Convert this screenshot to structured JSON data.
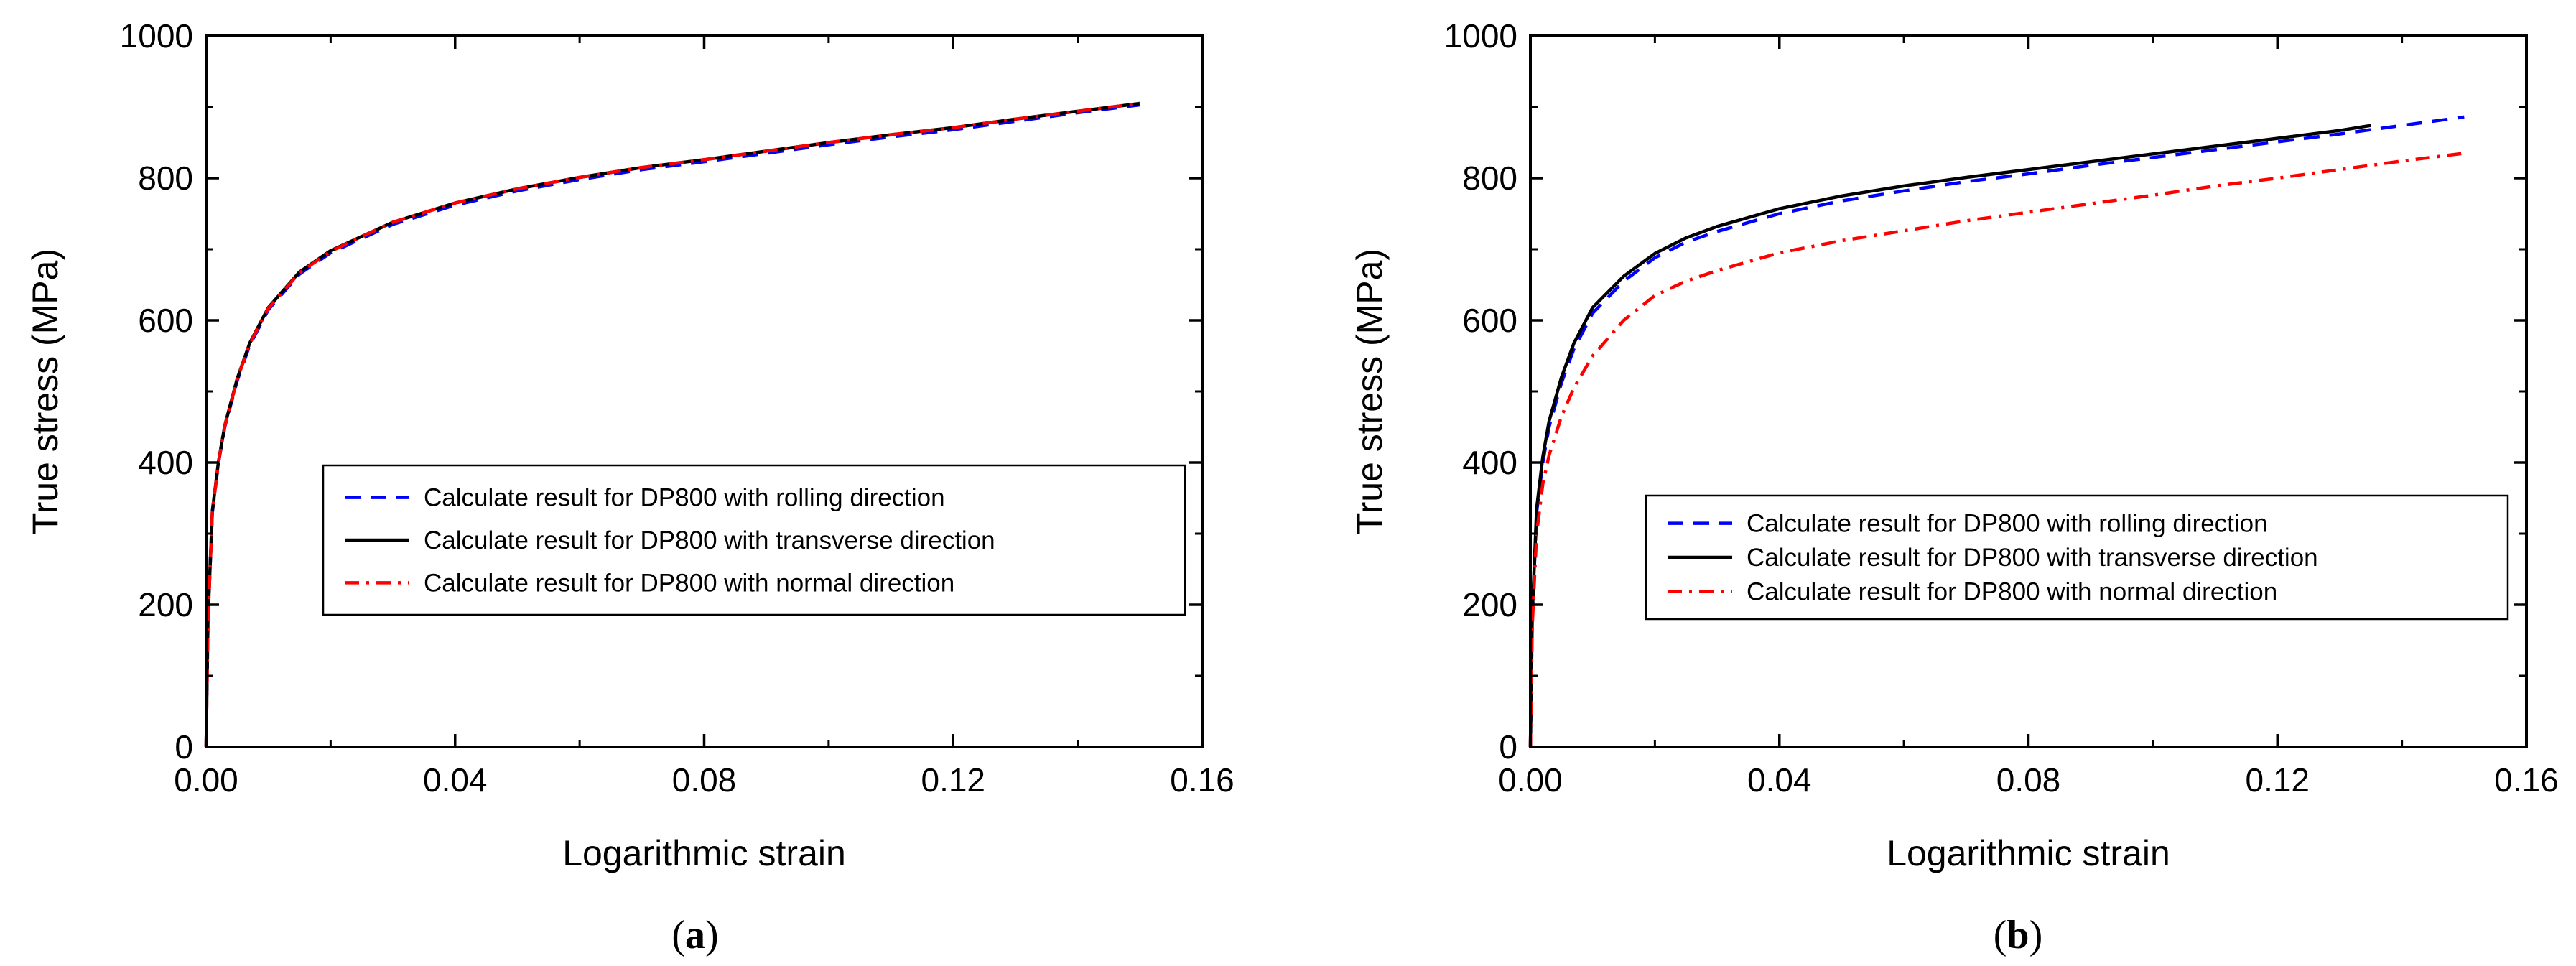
{
  "chart_data": [
    {
      "type": "line",
      "panel": "a",
      "caption": {
        "open": "(",
        "letter": "a",
        "close": ")"
      },
      "xlabel": "Logarithmic strain",
      "ylabel": "True stress (MPa)",
      "xlim": [
        0,
        0.16
      ],
      "ylim": [
        0,
        1000
      ],
      "xticks": [
        0.0,
        0.04,
        0.08,
        0.12,
        0.16
      ],
      "xtick_labels": [
        "0.00",
        "0.04",
        "0.08",
        "0.12",
        "0.16"
      ],
      "yticks": [
        0,
        200,
        400,
        600,
        800,
        1000
      ],
      "ytick_labels": [
        "0",
        "200",
        "400",
        "600",
        "800",
        "1000"
      ],
      "legend_position": "lower-right",
      "series": [
        {
          "name": "Calculate result for DP800 with rolling direction",
          "color": "#0000ff",
          "style": "dash",
          "x": [
            0,
            0.0003,
            0.001,
            0.002,
            0.003,
            0.005,
            0.007,
            0.01,
            0.015,
            0.02,
            0.025,
            0.03,
            0.04,
            0.05,
            0.06,
            0.07,
            0.08,
            0.09,
            0.1,
            0.11,
            0.12,
            0.13,
            0.14,
            0.15
          ],
          "y": [
            0,
            180,
            330,
            400,
            450,
            515,
            565,
            615,
            665,
            695,
            715,
            735,
            762,
            782,
            798,
            812,
            823,
            835,
            847,
            858,
            868,
            880,
            892,
            903
          ]
        },
        {
          "name": "Calculate result for DP800 with transverse direction",
          "color": "#000000",
          "style": "solid",
          "x": [
            0,
            0.0003,
            0.001,
            0.002,
            0.003,
            0.005,
            0.007,
            0.01,
            0.015,
            0.02,
            0.025,
            0.03,
            0.04,
            0.05,
            0.06,
            0.07,
            0.08,
            0.09,
            0.1,
            0.11,
            0.12,
            0.13,
            0.14,
            0.15
          ],
          "y": [
            0,
            180,
            332,
            402,
            452,
            518,
            568,
            618,
            668,
            698,
            718,
            738,
            765,
            785,
            801,
            815,
            826,
            838,
            850,
            861,
            871,
            883,
            894,
            905
          ]
        },
        {
          "name": "Calculate result for DP800 with normal direction",
          "color": "#ff0000",
          "style": "dashdot",
          "x": [
            0,
            0.0003,
            0.001,
            0.002,
            0.003,
            0.005,
            0.007,
            0.01,
            0.015,
            0.02,
            0.025,
            0.03,
            0.04,
            0.05,
            0.06,
            0.07,
            0.08,
            0.09,
            0.1,
            0.11,
            0.12,
            0.13,
            0.14,
            0.15
          ],
          "y": [
            0,
            178,
            331,
            401,
            451,
            517,
            567,
            617,
            667,
            697,
            718,
            738,
            765,
            785,
            801,
            815,
            826,
            838,
            850,
            861,
            871,
            883,
            894,
            905
          ]
        }
      ]
    },
    {
      "type": "line",
      "panel": "b",
      "caption": {
        "open": "(",
        "letter": "b",
        "close": ")"
      },
      "xlabel": "Logarithmic strain",
      "ylabel": "True stress (MPa)",
      "xlim": [
        0,
        0.16
      ],
      "ylim": [
        0,
        1000
      ],
      "xticks": [
        0.0,
        0.04,
        0.08,
        0.12,
        0.16
      ],
      "xtick_labels": [
        "0.00",
        "0.04",
        "0.08",
        "0.12",
        "0.16"
      ],
      "yticks": [
        0,
        200,
        400,
        600,
        800,
        1000
      ],
      "ytick_labels": [
        "0",
        "200",
        "400",
        "600",
        "800",
        "1000"
      ],
      "legend_position": "lower-right",
      "series": [
        {
          "name": "Calculate result for DP800 with rolling direction",
          "color": "#0000ff",
          "style": "dash",
          "x": [
            0,
            0.0003,
            0.001,
            0.002,
            0.003,
            0.005,
            0.007,
            0.01,
            0.015,
            0.02,
            0.025,
            0.03,
            0.04,
            0.05,
            0.06,
            0.07,
            0.08,
            0.09,
            0.1,
            0.11,
            0.12,
            0.13,
            0.14,
            0.15
          ],
          "y": [
            0,
            180,
            330,
            400,
            450,
            512,
            560,
            610,
            655,
            688,
            710,
            725,
            750,
            768,
            782,
            795,
            806,
            818,
            829,
            840,
            851,
            862,
            874,
            886
          ]
        },
        {
          "name": "Calculate result for DP800 with transverse direction",
          "color": "#000000",
          "style": "solid",
          "x": [
            0,
            0.0003,
            0.001,
            0.002,
            0.003,
            0.005,
            0.007,
            0.01,
            0.015,
            0.02,
            0.025,
            0.03,
            0.04,
            0.05,
            0.06,
            0.07,
            0.08,
            0.09,
            0.1,
            0.11,
            0.12,
            0.13,
            0.135
          ],
          "y": [
            0,
            185,
            335,
            408,
            458,
            520,
            568,
            618,
            662,
            694,
            716,
            732,
            757,
            775,
            789,
            801,
            812,
            823,
            834,
            845,
            856,
            867,
            874
          ]
        },
        {
          "name": "Calculate result for DP800 with normal direction",
          "color": "#ff0000",
          "style": "dashdot",
          "x": [
            0,
            0.0003,
            0.001,
            0.002,
            0.003,
            0.005,
            0.007,
            0.01,
            0.015,
            0.02,
            0.025,
            0.03,
            0.04,
            0.05,
            0.06,
            0.07,
            0.08,
            0.09,
            0.1,
            0.11,
            0.12,
            0.13,
            0.14,
            0.15
          ],
          "y": [
            0,
            170,
            300,
            370,
            410,
            465,
            505,
            550,
            600,
            635,
            655,
            670,
            695,
            712,
            726,
            740,
            752,
            764,
            776,
            789,
            800,
            812,
            824,
            835
          ]
        }
      ]
    }
  ]
}
